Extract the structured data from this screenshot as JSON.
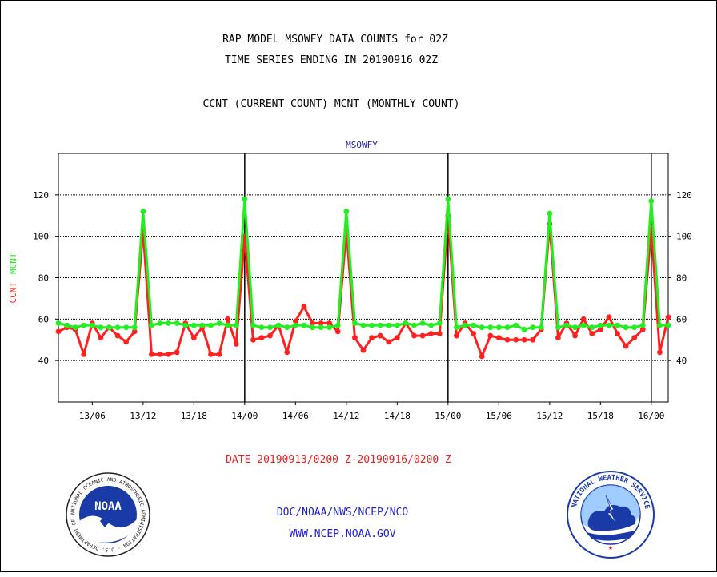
{
  "header": {
    "title_line1": "RAP MODEL MSOWFY DATA COUNTS for 02Z",
    "title_line2": "TIME SERIES ENDING IN 20190916 02Z",
    "subtitle": "CCNT (CURRENT COUNT) MCNT (MONTHLY COUNT)"
  },
  "footer": {
    "date_range": "DATE 20190913/0200 Z-20190916/0200 Z",
    "org_line": "DOC/NOAA/NWS/NCEP/NCO",
    "url_line": "WWW.NCEP.NOAA.GOV",
    "noaa_logo_text": "NOAA",
    "noaa_ring_text": "NATIONAL OCEANIC AND ATMOSPHERIC ADMINISTRATION · U.S. DEPARTMENT OF COMMERCE",
    "nws_ring_text": "NATIONAL WEATHER SERVICE"
  },
  "colors": {
    "ccnt": "#ff2020",
    "mcnt": "#22ee22",
    "station": "#2222aa",
    "date_text": "#ee2020",
    "link_text": "#2222cc"
  },
  "chart_data": {
    "type": "line",
    "title": "MSOWFY",
    "ylabel_parts": [
      "CCNT",
      "MCNT"
    ],
    "ylim": [
      20,
      140
    ],
    "yticks": [
      40,
      60,
      80,
      100,
      120
    ],
    "x_unit": "hours from 2019-09-13 02Z",
    "xlim": [
      0,
      72
    ],
    "xticks": [
      {
        "x": 4,
        "label": "13/06"
      },
      {
        "x": 10,
        "label": "13/12"
      },
      {
        "x": 16,
        "label": "13/18"
      },
      {
        "x": 22,
        "label": "14/00"
      },
      {
        "x": 28,
        "label": "14/06"
      },
      {
        "x": 34,
        "label": "14/12"
      },
      {
        "x": 40,
        "label": "14/18"
      },
      {
        "x": 46,
        "label": "15/00"
      },
      {
        "x": 52,
        "label": "15/06"
      },
      {
        "x": 58,
        "label": "15/12"
      },
      {
        "x": 64,
        "label": "15/18"
      },
      {
        "x": 70,
        "label": "16/00"
      }
    ],
    "day_boundaries": [
      22,
      46,
      70
    ],
    "grid": true,
    "series": [
      {
        "name": "CCNT",
        "values": [
          54,
          56,
          55,
          43,
          58,
          51,
          56,
          52,
          49,
          54,
          103,
          43,
          43,
          43,
          44,
          58,
          51,
          56,
          43,
          43,
          60,
          48,
          100,
          50,
          51,
          52,
          57,
          44,
          59,
          66,
          58,
          58,
          58,
          54,
          103,
          51,
          45,
          51,
          52,
          49,
          51,
          58,
          52,
          52,
          53,
          53,
          110,
          52,
          58,
          53,
          42,
          52,
          51,
          50,
          50,
          50,
          50,
          55,
          106,
          51,
          58,
          52,
          60,
          53,
          55,
          61,
          53,
          47,
          51,
          55,
          104,
          44,
          61
        ]
      },
      {
        "name": "MCNT",
        "values": [
          58,
          57,
          56,
          57,
          57,
          56,
          56,
          56,
          56,
          56,
          112,
          57,
          58,
          58,
          58,
          57,
          57,
          57,
          57,
          58,
          57,
          57,
          118,
          57,
          56,
          56,
          57,
          56,
          57,
          57,
          56,
          56,
          56,
          57,
          112,
          58,
          57,
          57,
          57,
          57,
          57,
          58,
          57,
          58,
          57,
          58,
          118,
          56,
          57,
          57,
          56,
          56,
          56,
          56,
          57,
          55,
          56,
          56,
          111,
          56,
          57,
          56,
          57,
          56,
          57,
          57,
          57,
          56,
          56,
          57,
          117,
          57,
          57
        ]
      }
    ]
  }
}
